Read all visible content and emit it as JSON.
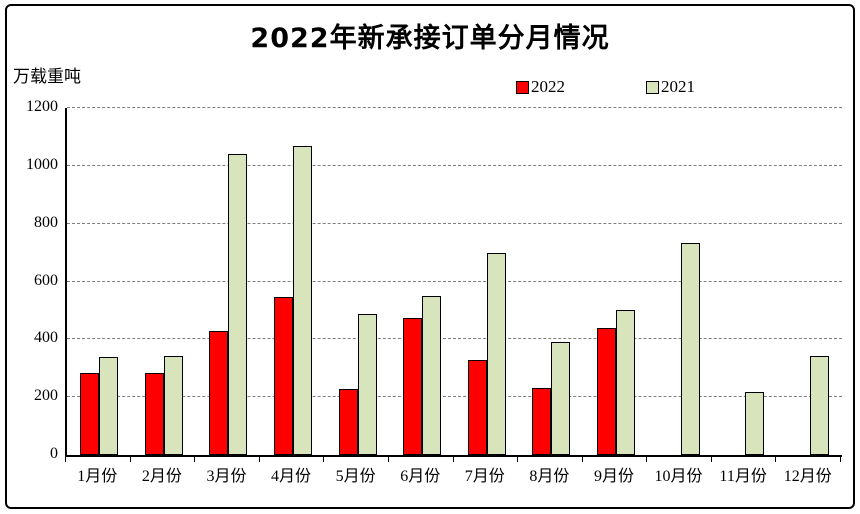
{
  "chart_data": {
    "type": "bar",
    "title": "2022年新承接订单分月情况",
    "unit_label": "万载重吨",
    "categories": [
      "1月份",
      "2月份",
      "3月份",
      "4月份",
      "5月份",
      "6月份",
      "7月份",
      "8月份",
      "9月份",
      "10月份",
      "11月份",
      "12月份"
    ],
    "series": [
      {
        "name": "2022",
        "color": "#ff0000",
        "values": [
          283,
          283,
          428,
          547,
          229,
          474,
          327,
          233,
          440,
          null,
          null,
          null
        ]
      },
      {
        "name": "2021",
        "color": "#d8e4bc",
        "values": [
          338,
          343,
          1040,
          1067,
          488,
          550,
          700,
          390,
          503,
          732,
          218,
          341
        ]
      }
    ],
    "ylim": [
      0,
      1200
    ],
    "ytick_interval": 200,
    "yticks": [
      "0",
      "200",
      "400",
      "600",
      "800",
      "1000",
      "1200"
    ],
    "grid": "horizontal-dashed",
    "legend_position": "top-center",
    "bar_border_color": "#000000",
    "gridline_color": "#7f7f7f",
    "frame_border_color": "#000000"
  }
}
